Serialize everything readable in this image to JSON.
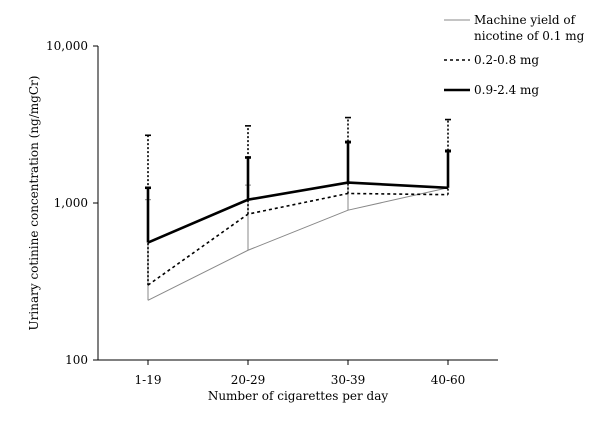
{
  "chart_data": {
    "type": "line",
    "x_label": "Number of cigarettes per day",
    "y_label": "Urinary cotinine concentration (ng/mgCr)",
    "y_scale": "log",
    "y_lim": [
      100,
      10000
    ],
    "y_ticks": [
      {
        "value": 100,
        "label": "100"
      },
      {
        "value": 1000,
        "label": "1,000"
      },
      {
        "value": 10000,
        "label": "10,000"
      }
    ],
    "categories": [
      "1-19",
      "20-29",
      "30-39",
      "40-60"
    ],
    "legend_position": "top-right",
    "series": [
      {
        "name": "Machine yield of nicotine of 0.1 mg",
        "style": "thin-solid",
        "color": "#888888",
        "values": [
          240,
          500,
          900,
          1250
        ],
        "error_upper": [
          1050,
          1300,
          2400,
          2100
        ]
      },
      {
        "name": "0.2-0.8 mg",
        "style": "dotted",
        "color": "#000000",
        "values": [
          300,
          850,
          1150,
          1130
        ],
        "error_upper": [
          2700,
          3100,
          3500,
          3400
        ]
      },
      {
        "name": "0.9-2.4 mg",
        "style": "thick-solid",
        "color": "#000000",
        "values": [
          560,
          1050,
          1350,
          1250
        ],
        "error_upper": [
          1250,
          1950,
          2450,
          2150
        ]
      }
    ]
  }
}
